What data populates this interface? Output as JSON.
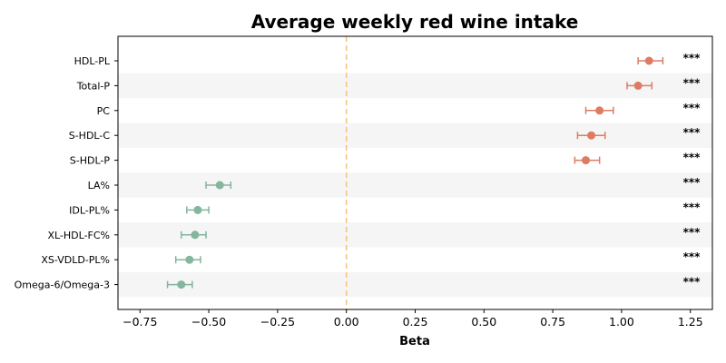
{
  "chart_data": {
    "type": "forest",
    "title": "Average weekly red wine intake",
    "xlabel": "Beta",
    "ylabel": "",
    "xlim": [
      -0.83,
      1.33
    ],
    "xticks": [
      -0.75,
      -0.5,
      -0.25,
      0.0,
      0.25,
      0.5,
      0.75,
      1.0,
      1.25
    ],
    "xtick_labels": [
      "−0.75",
      "−0.50",
      "−0.25",
      "0.00",
      "0.25",
      "0.50",
      "0.75",
      "1.00",
      "1.25"
    ],
    "reference_line": 0.0,
    "reference_line_color": "#f5c27a",
    "positive_color": "#de7c63",
    "negative_color": "#84b59d",
    "stripe_color": "#f5f5f5",
    "grid": false,
    "categories": [
      "HDL-PL",
      "Total-P",
      "PC",
      "S-HDL-C",
      "S-HDL-P",
      "LA%",
      "IDL-PL%",
      "XL-HDL-FC%",
      "XS-VDLD-PL%",
      "Omega-6/Omega-3"
    ],
    "values": [
      1.1,
      1.06,
      0.92,
      0.89,
      0.87,
      -0.46,
      -0.54,
      -0.55,
      -0.57,
      -0.6
    ],
    "ci_lower": [
      1.06,
      1.02,
      0.87,
      0.84,
      0.83,
      -0.51,
      -0.58,
      -0.6,
      -0.62,
      -0.65
    ],
    "ci_upper": [
      1.15,
      1.11,
      0.97,
      0.94,
      0.92,
      -0.42,
      -0.5,
      -0.51,
      -0.53,
      -0.56
    ],
    "significance": [
      "***",
      "***",
      "***",
      "***",
      "***",
      "***",
      "***",
      "***",
      "***",
      "***"
    ]
  }
}
